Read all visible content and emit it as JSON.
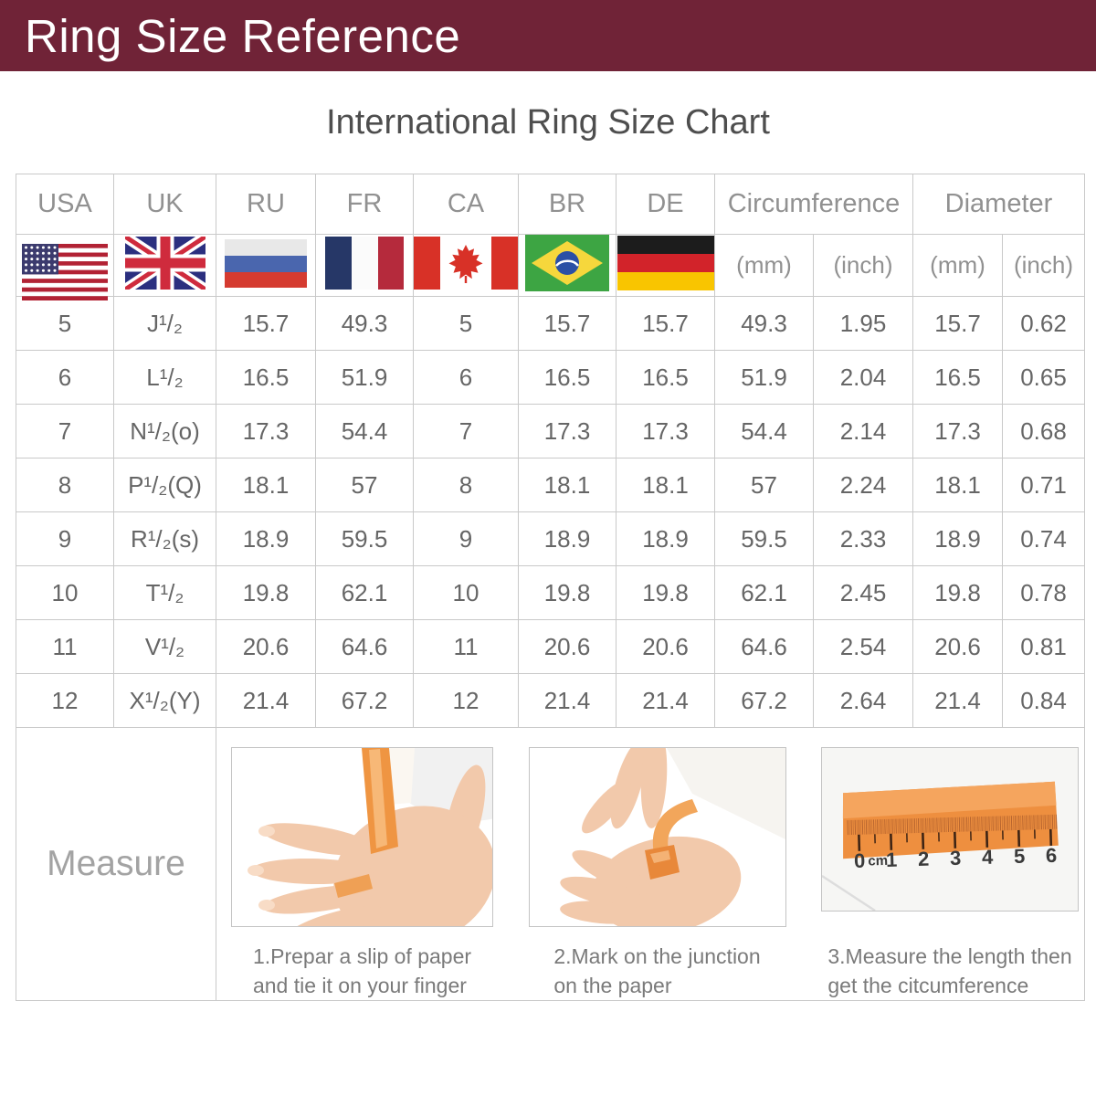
{
  "title_bar": {
    "title": "Ring Size Reference"
  },
  "subtitle": "International Ring Size Chart",
  "chart_data": {
    "type": "table",
    "title": "International Ring Size Chart",
    "columns": [
      "USA",
      "UK",
      "RU",
      "FR",
      "CA",
      "BR",
      "DE",
      "Circumference (mm)",
      "Circumference (inch)",
      "Diameter (mm)",
      "Diameter (inch)"
    ],
    "rows": [
      [
        "5",
        "J¹/₂",
        "15.7",
        "49.3",
        "5",
        "15.7",
        "15.7",
        "49.3",
        "1.95",
        "15.7",
        "0.62"
      ],
      [
        "6",
        "L¹/₂",
        "16.5",
        "51.9",
        "6",
        "16.5",
        "16.5",
        "51.9",
        "2.04",
        "16.5",
        "0.65"
      ],
      [
        "7",
        "N¹/₂(o)",
        "17.3",
        "54.4",
        "7",
        "17.3",
        "17.3",
        "54.4",
        "2.14",
        "17.3",
        "0.68"
      ],
      [
        "8",
        "P¹/₂(Q)",
        "18.1",
        "57",
        "8",
        "18.1",
        "18.1",
        "57",
        "2.24",
        "18.1",
        "0.71"
      ],
      [
        "9",
        "R¹/₂(s)",
        "18.9",
        "59.5",
        "9",
        "18.9",
        "18.9",
        "59.5",
        "2.33",
        "18.9",
        "0.74"
      ],
      [
        "10",
        "T¹/₂",
        "19.8",
        "62.1",
        "10",
        "19.8",
        "19.8",
        "62.1",
        "2.45",
        "19.8",
        "0.78"
      ],
      [
        "11",
        "V¹/₂",
        "20.6",
        "64.6",
        "11",
        "20.6",
        "20.6",
        "64.6",
        "2.54",
        "20.6",
        "0.81"
      ],
      [
        "12",
        "X¹/₂(Y)",
        "21.4",
        "67.2",
        "12",
        "21.4",
        "21.4",
        "67.2",
        "2.64",
        "21.4",
        "0.84"
      ]
    ]
  },
  "table": {
    "country_columns": [
      "USA",
      "UK",
      "RU",
      "FR",
      "CA",
      "BR",
      "DE"
    ],
    "flags": [
      "usa-flag",
      "uk-flag",
      "russia-flag",
      "france-flag",
      "canada-flag",
      "brazil-flag",
      "germany-flag"
    ],
    "groups": [
      {
        "label": "Circumference",
        "units": [
          "(mm)",
          "(inch)"
        ]
      },
      {
        "label": "Diameter",
        "units": [
          "(mm)",
          "(inch)"
        ]
      }
    ]
  },
  "measure": {
    "label": "Measure",
    "steps": [
      {
        "lines": [
          "1.Prepar a slip of paper",
          "and tie it on your finger"
        ]
      },
      {
        "lines": [
          "2.Mark on the junction",
          "on the paper"
        ]
      },
      {
        "lines": [
          "3.Measure the length then",
          "get the citcumference"
        ]
      }
    ],
    "ruler": {
      "unit": "cm",
      "numbers": [
        "0",
        "1",
        "2",
        "3",
        "4",
        "5",
        "6"
      ]
    }
  },
  "colors": {
    "header_bg": "#702337",
    "header_text": "#ffffff",
    "border": "#c9c9c9",
    "muted_text": "#919191",
    "data_text": "#666666",
    "caption_text": "#7a7a7a",
    "accent_orange": "#ee8f3f"
  }
}
